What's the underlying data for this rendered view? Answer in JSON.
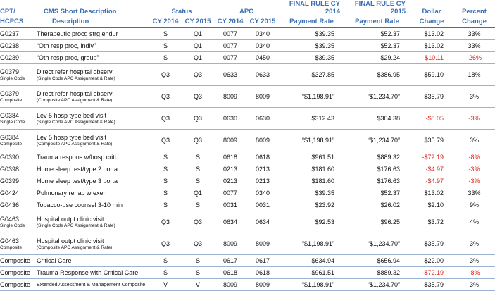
{
  "headers": {
    "cpt_line1": "CPT/",
    "cpt_line2": "HCPCS",
    "desc_line1": "CMS Short Description",
    "desc_line2": "Description",
    "status": "Status",
    "status_cy2014": "CY 2014",
    "status_cy2015": "CY 2015",
    "apc": "APC",
    "apc_cy2014": "CY 2014",
    "apc_cy2015": "CY 2015",
    "final2014_line1": "FINAL RULE CY 2014",
    "final2014_line2": "Payment Rate",
    "final2015_line1": "FINAL RULE CY 2015",
    "final2015_line2": "Payment Rate",
    "dollar_line1": "Dollar",
    "dollar_line2": "Change",
    "percent_line1": "Percent",
    "percent_line2": "Change"
  },
  "rows": [
    {
      "code": "G0237",
      "code_sub": "",
      "desc": "Therapeutic procd strg endur",
      "desc_sub": "",
      "s14": "S",
      "s15": "Q1",
      "a14": "0077",
      "a15": "0340",
      "p14": "$39.35",
      "p15": "$52.37",
      "dollar": "$13.02",
      "pct": "33%",
      "neg": false
    },
    {
      "code": "G0238",
      "code_sub": "",
      "desc": "“Oth resp proc, indiv”",
      "desc_sub": "",
      "s14": "S",
      "s15": "Q1",
      "a14": "0077",
      "a15": "0340",
      "p14": "$39.35",
      "p15": "$52.37",
      "dollar": "$13.02",
      "pct": "33%",
      "neg": false
    },
    {
      "code": "G0239",
      "code_sub": "",
      "desc": "“Oth resp proc, group”",
      "desc_sub": "",
      "s14": "S",
      "s15": "Q1",
      "a14": "0077",
      "a15": "0450",
      "p14": "$39.35",
      "p15": "$29.24",
      "dollar": "-$10.11",
      "pct": "-26%",
      "neg": true
    },
    {
      "code": "G0379",
      "code_sub": "Single Code",
      "desc": "Direct refer hospital observ",
      "desc_sub": "(Single Code APC Assignment & Rate)",
      "s14": "Q3",
      "s15": "Q3",
      "a14": "0633",
      "a15": "0633",
      "p14": "$327.85",
      "p15": "$386.95",
      "dollar": "$59.10",
      "pct": "18%",
      "neg": false
    },
    {
      "code": "G0379",
      "code_sub": "Composite",
      "desc": "Direct refer hospital observ",
      "desc_sub": "(Composite APC Assignment & Rate)",
      "s14": "Q3",
      "s15": "Q3",
      "a14": "8009",
      "a15": "8009",
      "p14": "“$1,198.91”",
      "p15": "“$1,234.70”",
      "dollar": "$35.79",
      "pct": "3%",
      "neg": false
    },
    {
      "code": "G0384",
      "code_sub": "Single Code",
      "desc": "Lev 5 hosp type bed visit",
      "desc_sub": "(Single Code APC Assignment & Rate)",
      "s14": "Q3",
      "s15": "Q3",
      "a14": "0630",
      "a15": "0630",
      "p14": "$312.43",
      "p15": "$304.38",
      "dollar": "-$8.05",
      "pct": "-3%",
      "neg": true
    },
    {
      "code": "G0384",
      "code_sub": "Composite",
      "desc": "Lev 5 hosp type bed visit",
      "desc_sub": "(Composite APC Assignment & Rate)",
      "s14": "Q3",
      "s15": "Q3",
      "a14": "8009",
      "a15": "8009",
      "p14": "“$1,198.91”",
      "p15": "“$1,234.70”",
      "dollar": "$35.79",
      "pct": "3%",
      "neg": false
    },
    {
      "code": "G0390",
      "code_sub": "",
      "desc": "Trauma respons w/hosp criti",
      "desc_sub": "",
      "s14": "S",
      "s15": "S",
      "a14": "0618",
      "a15": "0618",
      "p14": "$961.51",
      "p15": "$889.32",
      "dollar": "-$72.19",
      "pct": "-8%",
      "neg": true
    },
    {
      "code": "G0398",
      "code_sub": "",
      "desc": "Home sleep test/type 2 porta",
      "desc_sub": "",
      "s14": "S",
      "s15": "S",
      "a14": "0213",
      "a15": "0213",
      "p14": "$181.60",
      "p15": "$176.63",
      "dollar": "-$4.97",
      "pct": "-3%",
      "neg": true
    },
    {
      "code": "G0399",
      "code_sub": "",
      "desc": "Home sleep test/type 3 porta",
      "desc_sub": "",
      "s14": "S",
      "s15": "S",
      "a14": "0213",
      "a15": "0213",
      "p14": "$181.60",
      "p15": "$176.63",
      "dollar": "-$4.97",
      "pct": "-3%",
      "neg": true
    },
    {
      "code": "G0424",
      "code_sub": "",
      "desc": "Pulmonary rehab w exer",
      "desc_sub": "",
      "s14": "S",
      "s15": "Q1",
      "a14": "0077",
      "a15": "0340",
      "p14": "$39.35",
      "p15": "$52.37",
      "dollar": "$13.02",
      "pct": "33%",
      "neg": false
    },
    {
      "code": "G0436",
      "code_sub": "",
      "desc": "Tobacco-use counsel 3-10 min",
      "desc_sub": "",
      "s14": "S",
      "s15": "S",
      "a14": "0031",
      "a15": "0031",
      "p14": "$23.92",
      "p15": "$26.02",
      "dollar": "$2.10",
      "pct": "9%",
      "neg": false
    },
    {
      "code": "G0463",
      "code_sub": "Single Code",
      "desc": "Hospital outpt clinic visit",
      "desc_sub": "(Single Code APC Assignment & Rate)",
      "s14": "Q3",
      "s15": "Q3",
      "a14": "0634",
      "a15": "0634",
      "p14": "$92.53",
      "p15": "$96.25",
      "dollar": "$3.72",
      "pct": "4%",
      "neg": false
    },
    {
      "code": "G0463",
      "code_sub": "Composite",
      "desc": "Hospital outpt clinic visit",
      "desc_sub": "(Composite APC Assignment & Rate)",
      "s14": "Q3",
      "s15": "Q3",
      "a14": "8009",
      "a15": "8009",
      "p14": "“$1,198.91”",
      "p15": "“$1,234.70”",
      "dollar": "$35.79",
      "pct": "3%",
      "neg": false
    },
    {
      "code": "Composite",
      "code_sub": "",
      "desc": "Critical Care",
      "desc_sub": "",
      "s14": "S",
      "s15": "S",
      "a14": "0617",
      "a15": "0617",
      "p14": "$634.94",
      "p15": "$656.94",
      "dollar": "$22.00",
      "pct": "3%",
      "neg": false
    },
    {
      "code": "Composite",
      "code_sub": "",
      "desc": "Trauma Response with Critical Care",
      "desc_sub": "",
      "s14": "S",
      "s15": "S",
      "a14": "0618",
      "a15": "0618",
      "p14": "$961.51",
      "p15": "$889.32",
      "dollar": "-$72.19",
      "pct": "-8%",
      "neg": true
    },
    {
      "code": "Composite",
      "code_sub": "",
      "desc": "Extended Assessment & Management Composite",
      "desc_sub": "",
      "s14": "V",
      "s15": "V",
      "a14": "8009",
      "a15": "8009",
      "p14": "“$1,198.91”",
      "p15": "“$1,234.70”",
      "dollar": "$35.79",
      "pct": "3%",
      "neg": false
    }
  ]
}
